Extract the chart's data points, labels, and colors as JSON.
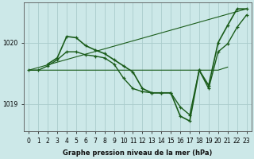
{
  "xlabel": "Graphe pression niveau de la mer (hPa)",
  "background_color": "#cce8e8",
  "grid_color": "#aacccc",
  "line_color": "#1a5c1a",
  "x_ticks": [
    0,
    1,
    2,
    3,
    4,
    5,
    6,
    7,
    8,
    9,
    10,
    11,
    12,
    13,
    14,
    15,
    16,
    17,
    18,
    19,
    20,
    21,
    22,
    23
  ],
  "ylim": [
    1018.55,
    1020.65
  ],
  "yticks": [
    1019.0,
    1020.0
  ],
  "lines": [
    {
      "x": [
        0,
        1,
        2,
        3,
        4,
        5,
        6,
        7,
        8,
        9,
        10,
        11,
        12,
        13,
        14,
        15,
        16,
        17,
        18,
        19,
        20,
        21
      ],
      "y": [
        1019.55,
        1019.55,
        1019.55,
        1019.55,
        1019.55,
        1019.55,
        1019.55,
        1019.55,
        1019.55,
        1019.55,
        1019.55,
        1019.55,
        1019.55,
        1019.55,
        1019.55,
        1019.55,
        1019.55,
        1019.55,
        1019.55,
        1019.55,
        1019.55,
        1019.6
      ],
      "marker": false,
      "lw": 0.8
    },
    {
      "x": [
        0,
        23
      ],
      "y": [
        1019.55,
        1020.55
      ],
      "marker": false,
      "lw": 0.8
    },
    {
      "x": [
        0,
        1,
        2,
        3,
        4,
        5,
        6,
        7,
        8,
        9,
        10,
        11,
        12,
        13,
        14,
        15,
        16,
        17,
        18,
        19,
        20,
        21,
        22,
        23
      ],
      "y": [
        1019.55,
        1019.55,
        1019.62,
        1019.72,
        1019.85,
        1019.85,
        1019.8,
        1019.78,
        1019.75,
        1019.65,
        1019.42,
        1019.25,
        1019.2,
        1019.18,
        1019.18,
        1019.18,
        1018.95,
        1018.82,
        1019.55,
        1019.25,
        1019.85,
        1019.98,
        1020.25,
        1020.45
      ],
      "marker": true,
      "lw": 1.0
    },
    {
      "x": [
        2,
        3,
        4,
        5,
        6,
        7,
        8,
        9,
        10,
        11,
        12,
        13,
        14,
        15,
        16,
        17,
        18,
        19,
        20,
        21,
        22,
        23
      ],
      "y": [
        1019.65,
        1019.75,
        1020.1,
        1020.08,
        1019.95,
        1019.88,
        1019.82,
        1019.72,
        1019.62,
        1019.52,
        1019.25,
        1019.18,
        1019.18,
        1019.18,
        1018.8,
        1018.72,
        1019.55,
        1019.3,
        1020.0,
        1020.28,
        1020.55,
        1020.55
      ],
      "marker": true,
      "lw": 1.2
    }
  ]
}
